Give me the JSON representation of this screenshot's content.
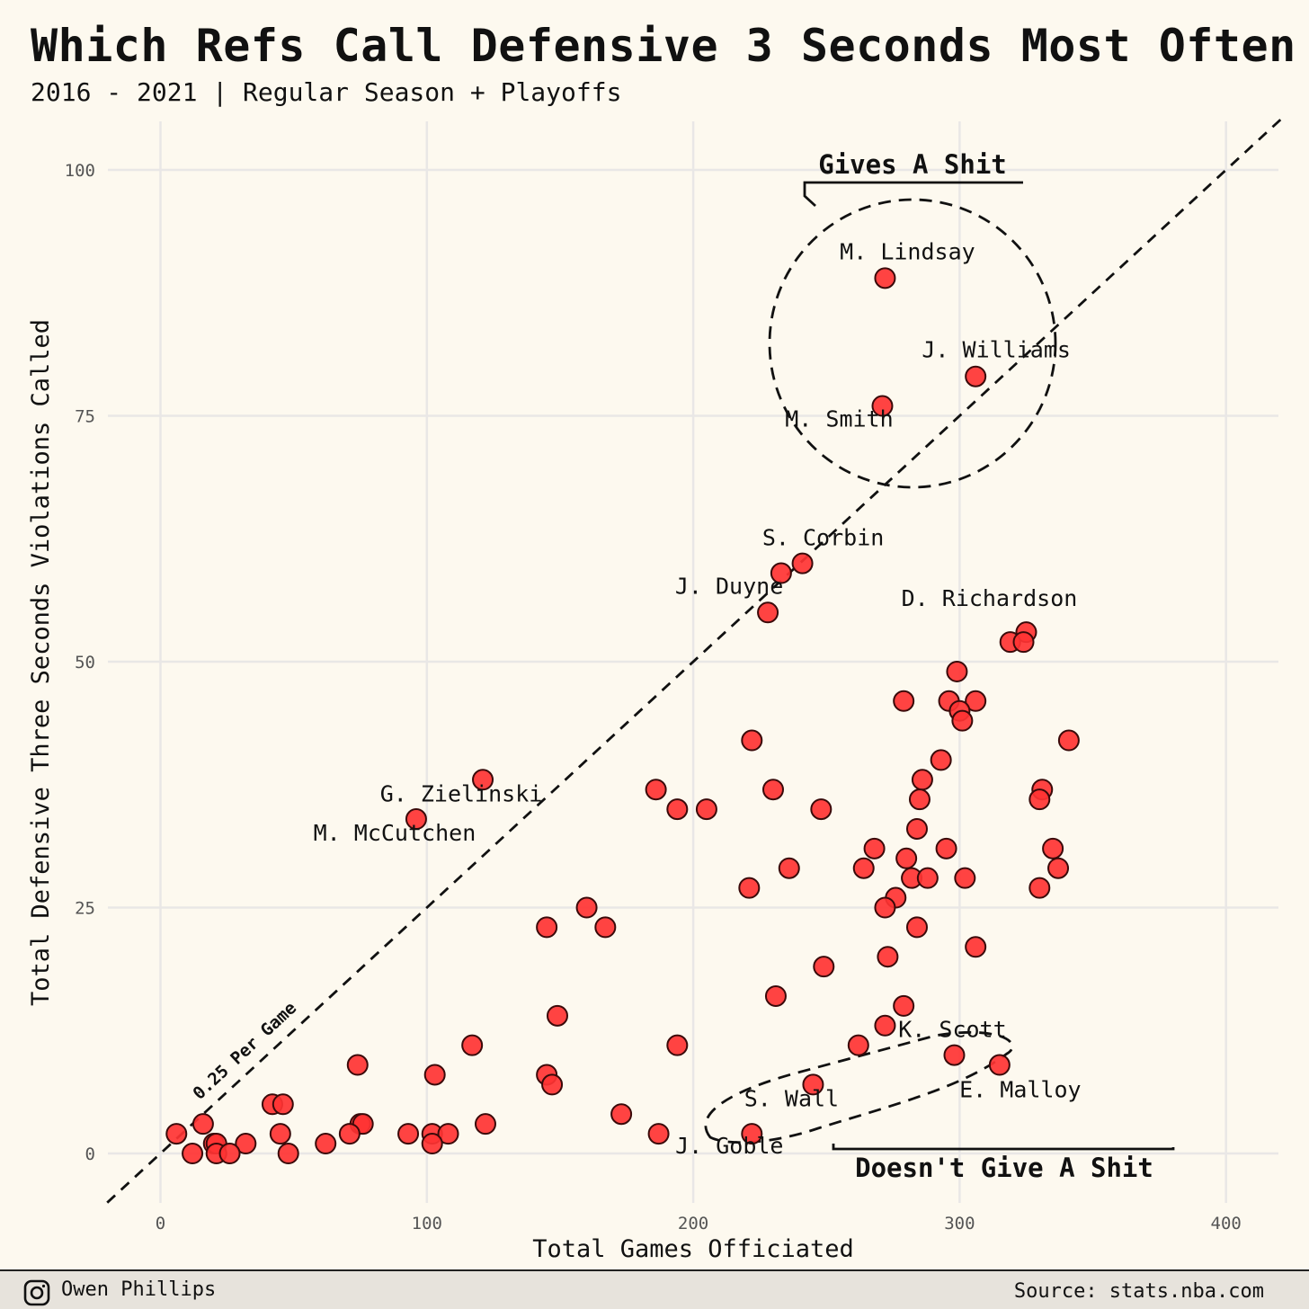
{
  "title": "Which Refs Call Defensive 3 Seconds Most Often",
  "subtitle": "2016 - 2021 | Regular Season + Playoffs",
  "footer": {
    "author": "Owen Phillips",
    "source": "Source: stats.nba.com",
    "icon": "instagram-icon"
  },
  "colors": {
    "background": "#fdf9ef",
    "point_fill": "#ff3333",
    "point_stroke": "#3a0a0a",
    "grid": "#e9e7e6",
    "footer_bg": "#e7e3dc"
  },
  "chart_data": {
    "type": "scatter",
    "xlabel": "Total Games Officiated",
    "ylabel": "Total Defensive Three Seconds Violations Called",
    "xlim": [
      -20,
      420
    ],
    "ylim": [
      -5,
      105
    ],
    "xticks": [
      0,
      100,
      200,
      300,
      400
    ],
    "yticks": [
      0,
      25,
      50,
      75,
      100
    ],
    "grid": true,
    "reference_line": {
      "slope": 0.25,
      "label": "0.25 Per Game"
    },
    "points": [
      {
        "x": 272,
        "y": 89,
        "label": "M. Lindsay"
      },
      {
        "x": 306,
        "y": 79,
        "label": "J. Williams"
      },
      {
        "x": 271,
        "y": 76,
        "label": "M. Smith"
      },
      {
        "x": 241,
        "y": 60,
        "label": "S. Corbin"
      },
      {
        "x": 233,
        "y": 59
      },
      {
        "x": 228,
        "y": 55,
        "label": "J. Duyne"
      },
      {
        "x": 325,
        "y": 53,
        "label": "D. Richardson"
      },
      {
        "x": 319,
        "y": 52
      },
      {
        "x": 324,
        "y": 52
      },
      {
        "x": 299,
        "y": 49
      },
      {
        "x": 279,
        "y": 46
      },
      {
        "x": 296,
        "y": 46
      },
      {
        "x": 306,
        "y": 46
      },
      {
        "x": 300,
        "y": 45
      },
      {
        "x": 301,
        "y": 44
      },
      {
        "x": 222,
        "y": 42
      },
      {
        "x": 341,
        "y": 42
      },
      {
        "x": 293,
        "y": 40
      },
      {
        "x": 121,
        "y": 38,
        "label": "G. Zielinski"
      },
      {
        "x": 286,
        "y": 38
      },
      {
        "x": 186,
        "y": 37
      },
      {
        "x": 230,
        "y": 37
      },
      {
        "x": 331,
        "y": 37
      },
      {
        "x": 285,
        "y": 36
      },
      {
        "x": 330,
        "y": 36
      },
      {
        "x": 194,
        "y": 35
      },
      {
        "x": 205,
        "y": 35
      },
      {
        "x": 248,
        "y": 35
      },
      {
        "x": 96,
        "y": 34,
        "label": "M. McCutchen"
      },
      {
        "x": 284,
        "y": 33
      },
      {
        "x": 268,
        "y": 31
      },
      {
        "x": 295,
        "y": 31
      },
      {
        "x": 335,
        "y": 31
      },
      {
        "x": 280,
        "y": 30
      },
      {
        "x": 264,
        "y": 29
      },
      {
        "x": 236,
        "y": 29
      },
      {
        "x": 337,
        "y": 29
      },
      {
        "x": 282,
        "y": 28
      },
      {
        "x": 288,
        "y": 28
      },
      {
        "x": 302,
        "y": 28
      },
      {
        "x": 221,
        "y": 27
      },
      {
        "x": 330,
        "y": 27
      },
      {
        "x": 276,
        "y": 26
      },
      {
        "x": 160,
        "y": 25
      },
      {
        "x": 272,
        "y": 25
      },
      {
        "x": 145,
        "y": 23
      },
      {
        "x": 167,
        "y": 23
      },
      {
        "x": 284,
        "y": 23
      },
      {
        "x": 306,
        "y": 21
      },
      {
        "x": 273,
        "y": 20
      },
      {
        "x": 249,
        "y": 19
      },
      {
        "x": 231,
        "y": 16
      },
      {
        "x": 279,
        "y": 15
      },
      {
        "x": 149,
        "y": 14
      },
      {
        "x": 272,
        "y": 13
      },
      {
        "x": 117,
        "y": 11
      },
      {
        "x": 194,
        "y": 11
      },
      {
        "x": 262,
        "y": 11
      },
      {
        "x": 298,
        "y": 10,
        "label": "K. Scott"
      },
      {
        "x": 74,
        "y": 9
      },
      {
        "x": 315,
        "y": 9,
        "label": "E. Malloy"
      },
      {
        "x": 103,
        "y": 8
      },
      {
        "x": 145,
        "y": 8
      },
      {
        "x": 147,
        "y": 7
      },
      {
        "x": 245,
        "y": 7,
        "label": "S. Wall"
      },
      {
        "x": 42,
        "y": 5
      },
      {
        "x": 46,
        "y": 5
      },
      {
        "x": 173,
        "y": 4
      },
      {
        "x": 16,
        "y": 3
      },
      {
        "x": 75,
        "y": 3
      },
      {
        "x": 76,
        "y": 3
      },
      {
        "x": 122,
        "y": 3
      },
      {
        "x": 6,
        "y": 2
      },
      {
        "x": 45,
        "y": 2
      },
      {
        "x": 71,
        "y": 2
      },
      {
        "x": 93,
        "y": 2
      },
      {
        "x": 102,
        "y": 2
      },
      {
        "x": 108,
        "y": 2
      },
      {
        "x": 187,
        "y": 2
      },
      {
        "x": 222,
        "y": 2,
        "label": "J. Goble"
      },
      {
        "x": 20,
        "y": 1
      },
      {
        "x": 21,
        "y": 1
      },
      {
        "x": 32,
        "y": 1
      },
      {
        "x": 62,
        "y": 1
      },
      {
        "x": 102,
        "y": 1
      },
      {
        "x": 12,
        "y": 0
      },
      {
        "x": 21,
        "y": 0
      },
      {
        "x": 26,
        "y": 0
      },
      {
        "x": 48,
        "y": 0
      }
    ],
    "annotations": [
      {
        "text": "Gives A Shit",
        "target": "top circle"
      },
      {
        "text": "Doesn't Give A Shit",
        "target": "bottom ellipse"
      }
    ]
  }
}
